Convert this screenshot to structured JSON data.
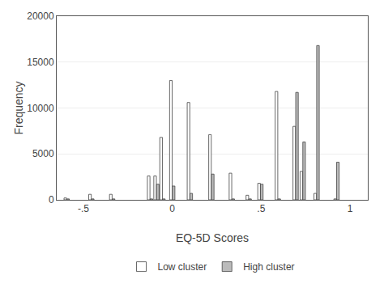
{
  "chart_data": {
    "type": "bar",
    "xlabel": "EQ-5D Scores",
    "ylabel": "Frequency",
    "x": [
      -0.594,
      -0.455,
      -0.338,
      -0.125,
      -0.089,
      -0.055,
      0.0,
      0.099,
      0.22,
      0.335,
      0.43,
      0.496,
      0.594,
      0.694,
      0.734,
      0.812,
      0.924
    ],
    "series": [
      {
        "name": "Low cluster",
        "color": "white",
        "values": [
          200,
          600,
          600,
          2600,
          2600,
          6800,
          13000,
          10600,
          7100,
          2900,
          500,
          1800,
          11800,
          8000,
          3100,
          700,
          100
        ]
      },
      {
        "name": "High cluster",
        "color": "#bbbbbb",
        "values": [
          100,
          100,
          100,
          100,
          1700,
          100,
          1500,
          700,
          2800,
          100,
          100,
          1700,
          100,
          11700,
          6300,
          16800,
          4100
        ]
      }
    ],
    "xlim": [
      -0.65,
      1.1
    ],
    "xticks": [
      {
        "value": -0.5,
        "label": "-.5"
      },
      0,
      {
        "value": 0.5,
        "label": ".5"
      },
      1
    ],
    "ylim": [
      0,
      20000
    ],
    "yticks": [
      0,
      5000,
      10000,
      15000,
      20000
    ],
    "grid": true,
    "legend": "bottom"
  }
}
